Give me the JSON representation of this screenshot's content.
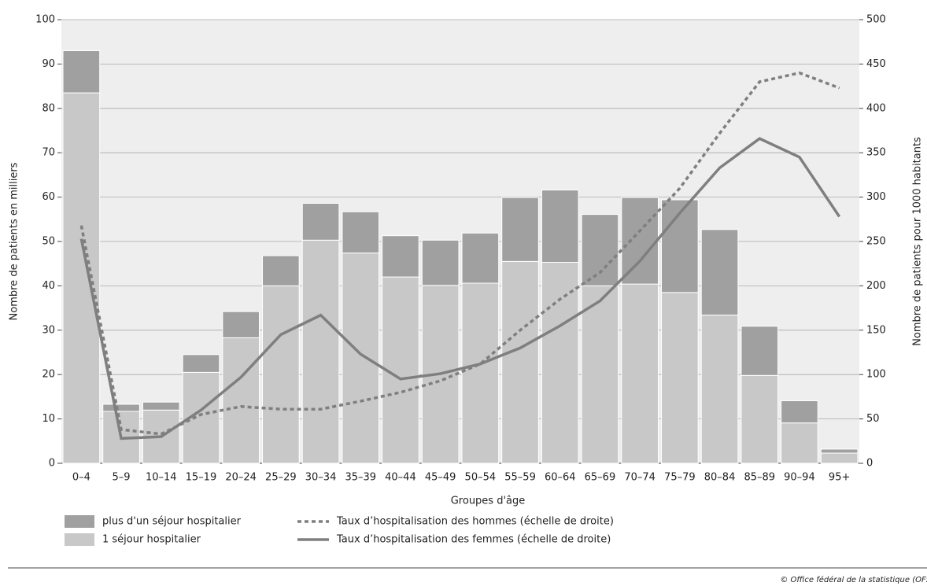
{
  "chart_data": {
    "type": "bar",
    "categories": [
      "0–4",
      "5–9",
      "10–14",
      "15–19",
      "20–24",
      "25–29",
      "30–34",
      "35–39",
      "40–44",
      "45–49",
      "50–54",
      "55–59",
      "60–64",
      "65–69",
      "70–74",
      "75–79",
      "80–84",
      "85–89",
      "90–94",
      "95+"
    ],
    "series": [
      {
        "name": "1 séjour hospitalier",
        "color": "#c8c8c8",
        "type": "bar",
        "values": [
          83.5,
          11.7,
          12,
          20.5,
          28.3,
          40,
          50.3,
          47.4,
          42,
          40.1,
          40.6,
          45.5,
          45.3,
          40,
          40.4,
          38.5,
          33.4,
          19.8,
          9.1,
          2.3
        ]
      },
      {
        "name": "plus d'un séjour hospitalier",
        "color": "#a0a0a0",
        "type": "bar",
        "values": [
          9.5,
          1.6,
          1.8,
          4,
          5.9,
          6.8,
          8.3,
          9.3,
          9.3,
          10.2,
          11.3,
          14.4,
          16.3,
          16.1,
          19.5,
          20.9,
          19.3,
          11.1,
          5,
          0.9
        ]
      },
      {
        "name": "Taux d’hospitalisation des hommes (échelle de droite)",
        "color": "#7f7f7f",
        "type": "line",
        "dashed": true,
        "axis": "y2",
        "values": [
          268,
          38,
          33,
          55,
          64,
          61,
          61,
          70,
          80,
          93,
          112,
          150,
          185,
          215,
          262,
          310,
          372,
          430,
          440,
          423
        ]
      },
      {
        "name": "Taux d’hospitalisation des femmes (échelle de droite)",
        "color": "#7f7f7f",
        "type": "line",
        "dashed": false,
        "axis": "y2",
        "values": [
          253,
          28,
          30,
          60,
          97,
          145,
          167,
          123,
          95,
          101,
          112,
          130,
          155,
          183,
          228,
          282,
          333,
          366,
          345,
          278
        ]
      }
    ],
    "stacked": true,
    "x_label": "Groupes d'âge",
    "y_label": "Nombre de patients en milliers",
    "y2_label": "Nombre de patients pour 1000 habitants",
    "ylim": [
      0,
      100
    ],
    "yticks": [
      0,
      10,
      20,
      30,
      40,
      50,
      60,
      70,
      80,
      90,
      100
    ],
    "y2lim": [
      0,
      500
    ],
    "y2ticks": [
      0,
      50,
      100,
      150,
      200,
      250,
      300,
      350,
      400,
      450,
      500
    ],
    "grid": true,
    "source": "© Office fédéral de la statistique (OFS)"
  }
}
